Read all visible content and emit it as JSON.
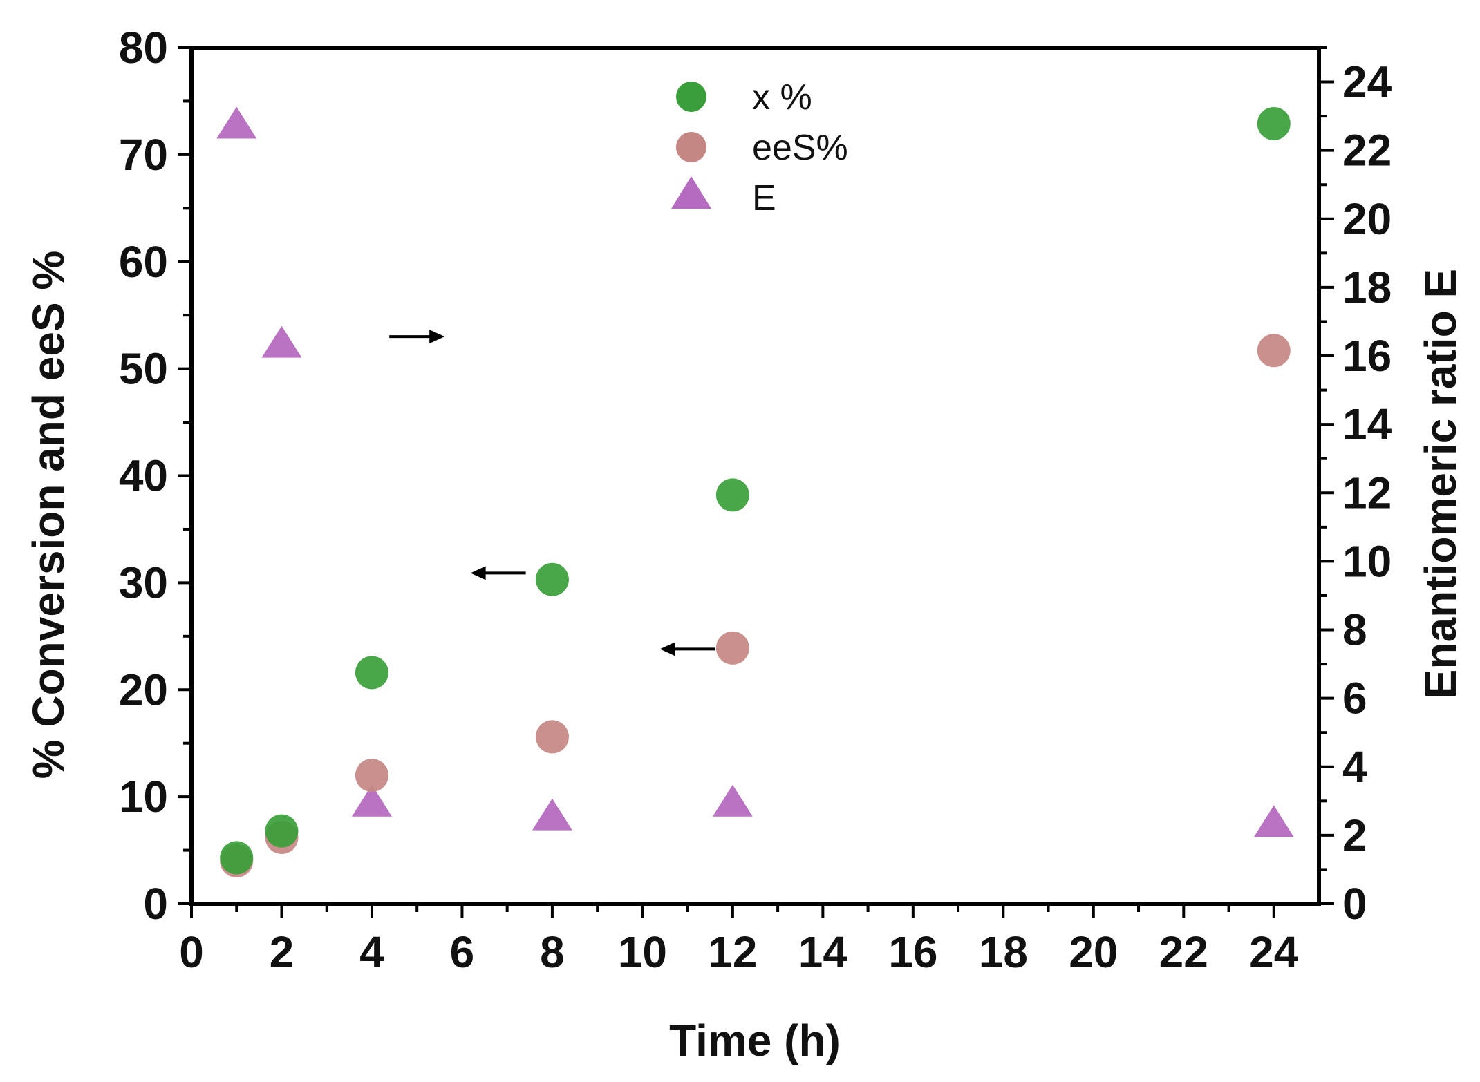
{
  "chart_data": {
    "type": "scatter",
    "title": "",
    "xlabel": "Time (h)",
    "ylabel": "% Conversion and eeS %",
    "y2label": "Enantiomeric ratio E",
    "xlim": [
      0,
      25
    ],
    "ylim": [
      0,
      80
    ],
    "y2lim": [
      0,
      25
    ],
    "x_ticks": [
      "0",
      "2",
      "4",
      "6",
      "8",
      "10",
      "12",
      "14",
      "16",
      "18",
      "20",
      "22",
      "24"
    ],
    "y_ticks": [
      "0",
      "10",
      "20",
      "30",
      "40",
      "50",
      "60",
      "70",
      "80"
    ],
    "y2_ticks": [
      "0",
      "2",
      "4",
      "6",
      "8",
      "10",
      "12",
      "14",
      "16",
      "18",
      "20",
      "22",
      "24"
    ],
    "legend_position": "top-center",
    "series": [
      {
        "name": "x %",
        "marker": "circle",
        "axis": "left",
        "color": "#3a9e3a",
        "x": [
          1,
          2,
          4,
          8,
          12,
          24
        ],
        "values": [
          4.3,
          6.8,
          21.6,
          30.3,
          38.2,
          72.9
        ]
      },
      {
        "name": "eeS%",
        "marker": "circle",
        "axis": "left",
        "color": "#c48783",
        "x": [
          1,
          2,
          4,
          8,
          12,
          24
        ],
        "values": [
          4.0,
          6.2,
          12.0,
          15.6,
          23.9,
          51.7
        ]
      },
      {
        "name": "E",
        "marker": "triangle",
        "axis": "right",
        "color": "#b56bbf",
        "x": [
          1,
          2,
          4,
          8,
          12,
          24
        ],
        "values": [
          22.7,
          16.3,
          2.9,
          2.5,
          2.9,
          2.3
        ]
      }
    ],
    "annotations": [
      {
        "type": "arrow",
        "direction": "right",
        "at_x": 5.0,
        "at_y": 53,
        "axis": "left"
      },
      {
        "type": "arrow",
        "direction": "left",
        "at_x": 6.8,
        "at_y": 30.9,
        "axis": "left"
      },
      {
        "type": "arrow",
        "direction": "left",
        "at_x": 11.0,
        "at_y": 23.8,
        "axis": "left"
      }
    ]
  }
}
